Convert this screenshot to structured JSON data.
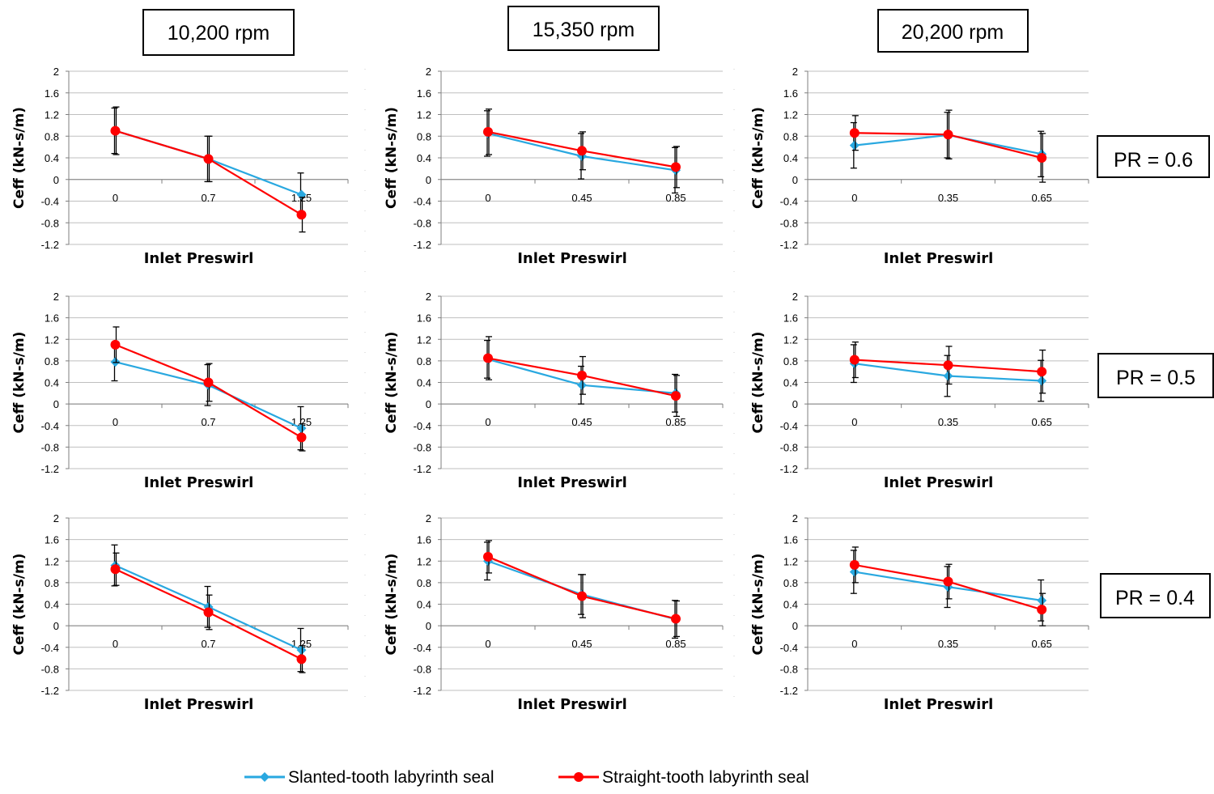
{
  "speed_labels": [
    "10,200 rpm",
    "15,350 rpm",
    "20,200 rpm"
  ],
  "pr_labels": [
    "PR = 0.6",
    "PR = 0.5",
    "PR = 0.4"
  ],
  "legend": {
    "items": [
      {
        "label": "Slanted-tooth labyrinth seal",
        "color": "#29a8e0",
        "marker": "diamond"
      },
      {
        "label": "Straight-tooth labyrinth seal",
        "color": "#ff0000",
        "marker": "circle"
      }
    ]
  },
  "chart_data": [
    {
      "type": "line",
      "row": 0,
      "col": 0,
      "xlabel": "Inlet Preswirl",
      "ylabel": "Ceff (kN-s/m)",
      "ylim": [
        -1.2,
        2
      ],
      "yticks": [
        "2",
        "1.6",
        "1.2",
        "0.8",
        "0.4",
        "0",
        "-0.4",
        "-0.8",
        "-1.2"
      ],
      "categories": [
        "0",
        "0.7",
        "1.25"
      ],
      "series": [
        {
          "name": "Slanted-tooth labyrinth seal",
          "values": [
            0.9,
            0.38,
            -0.28
          ],
          "err": [
            0.42,
            0.42,
            0.4
          ]
        },
        {
          "name": "Straight-tooth labyrinth seal",
          "values": [
            0.9,
            0.38,
            -0.65
          ],
          "err": [
            0.44,
            0.42,
            0.32
          ]
        }
      ]
    },
    {
      "type": "line",
      "row": 0,
      "col": 1,
      "xlabel": "Inlet Preswirl",
      "ylabel": "Ceff (kN-s/m)",
      "ylim": [
        -1.2,
        2
      ],
      "yticks": [
        "2",
        "1.6",
        "1.2",
        "0.8",
        "0.4",
        "0",
        "-0.4",
        "-0.8",
        "-1.2"
      ],
      "categories": [
        "0",
        "0.45",
        "0.85"
      ],
      "series": [
        {
          "name": "Slanted-tooth labyrinth seal",
          "values": [
            0.85,
            0.43,
            0.17
          ],
          "err": [
            0.42,
            0.42,
            0.42
          ]
        },
        {
          "name": "Straight-tooth labyrinth seal",
          "values": [
            0.88,
            0.53,
            0.23
          ],
          "err": [
            0.42,
            0.35,
            0.38
          ]
        }
      ]
    },
    {
      "type": "line",
      "row": 0,
      "col": 2,
      "xlabel": "Inlet Preswirl",
      "ylabel": "Ceff (kN-s/m)",
      "ylim": [
        -1.2,
        2
      ],
      "yticks": [
        "2",
        "1.6",
        "1.2",
        "0.8",
        "0.4",
        "0",
        "-0.4",
        "-0.8",
        "-1.2"
      ],
      "categories": [
        "0",
        "0.35",
        "0.65"
      ],
      "series": [
        {
          "name": "Slanted-tooth labyrinth seal",
          "values": [
            0.63,
            0.82,
            0.47
          ],
          "err": [
            0.42,
            0.42,
            0.42
          ]
        },
        {
          "name": "Straight-tooth labyrinth seal",
          "values": [
            0.86,
            0.83,
            0.4
          ],
          "err": [
            0.32,
            0.45,
            0.45
          ]
        }
      ]
    },
    {
      "type": "line",
      "row": 1,
      "col": 0,
      "xlabel": "Inlet Preswirl",
      "ylabel": "Ceff (kN-s/m)",
      "ylim": [
        -1.2,
        2
      ],
      "yticks": [
        "2",
        "1.6",
        "1.2",
        "0.8",
        "0.4",
        "0",
        "-0.4",
        "-0.8",
        "-1.2"
      ],
      "categories": [
        "0",
        "0.7",
        "1.25"
      ],
      "series": [
        {
          "name": "Slanted-tooth labyrinth seal",
          "values": [
            0.78,
            0.35,
            -0.45
          ],
          "err": [
            0.35,
            0.38,
            0.4
          ]
        },
        {
          "name": "Straight-tooth labyrinth seal",
          "values": [
            1.1,
            0.4,
            -0.62
          ],
          "err": [
            0.33,
            0.35,
            0.25
          ]
        }
      ]
    },
    {
      "type": "line",
      "row": 1,
      "col": 1,
      "xlabel": "Inlet Preswirl",
      "ylabel": "Ceff (kN-s/m)",
      "ylim": [
        -1.2,
        2
      ],
      "yticks": [
        "2",
        "1.6",
        "1.2",
        "0.8",
        "0.4",
        "0",
        "-0.4",
        "-0.8",
        "-1.2"
      ],
      "categories": [
        "0",
        "0.45",
        "0.85"
      ],
      "series": [
        {
          "name": "Slanted-tooth labyrinth seal",
          "values": [
            0.83,
            0.35,
            0.2
          ],
          "err": [
            0.35,
            0.35,
            0.35
          ]
        },
        {
          "name": "Straight-tooth labyrinth seal",
          "values": [
            0.85,
            0.53,
            0.15
          ],
          "err": [
            0.4,
            0.35,
            0.38
          ]
        }
      ]
    },
    {
      "type": "line",
      "row": 1,
      "col": 2,
      "xlabel": "Inlet Preswirl",
      "ylabel": "Ceff (kN-s/m)",
      "ylim": [
        -1.2,
        2
      ],
      "yticks": [
        "2",
        "1.6",
        "1.2",
        "0.8",
        "0.4",
        "0",
        "-0.4",
        "-0.8",
        "-1.2"
      ],
      "categories": [
        "0",
        "0.35",
        "0.65"
      ],
      "series": [
        {
          "name": "Slanted-tooth labyrinth seal",
          "values": [
            0.75,
            0.52,
            0.43
          ],
          "err": [
            0.35,
            0.38,
            0.38
          ]
        },
        {
          "name": "Straight-tooth labyrinth seal",
          "values": [
            0.82,
            0.72,
            0.6
          ],
          "err": [
            0.33,
            0.35,
            0.4
          ]
        }
      ]
    },
    {
      "type": "line",
      "row": 2,
      "col": 0,
      "xlabel": "Inlet Preswirl",
      "ylabel": "Ceff (kN-s/m)",
      "ylim": [
        -1.2,
        2
      ],
      "yticks": [
        "2",
        "1.6",
        "1.2",
        "0.8",
        "0.4",
        "0",
        "-0.4",
        "-0.8",
        "-1.2"
      ],
      "categories": [
        "0",
        "0.7",
        "1.25"
      ],
      "series": [
        {
          "name": "Slanted-tooth labyrinth seal",
          "values": [
            1.12,
            0.35,
            -0.45
          ],
          "err": [
            0.38,
            0.38,
            0.4
          ]
        },
        {
          "name": "Straight-tooth labyrinth seal",
          "values": [
            1.05,
            0.25,
            -0.62
          ],
          "err": [
            0.3,
            0.32,
            0.25
          ]
        }
      ]
    },
    {
      "type": "line",
      "row": 2,
      "col": 1,
      "xlabel": "Inlet Preswirl",
      "ylabel": "Ceff (kN-s/m)",
      "ylim": [
        -1.2,
        2
      ],
      "yticks": [
        "2",
        "1.6",
        "1.2",
        "0.8",
        "0.4",
        "0",
        "-0.4",
        "-0.8",
        "-1.2"
      ],
      "categories": [
        "0",
        "0.45",
        "0.85"
      ],
      "series": [
        {
          "name": "Slanted-tooth labyrinth seal",
          "values": [
            1.2,
            0.58,
            0.12
          ],
          "err": [
            0.35,
            0.37,
            0.35
          ]
        },
        {
          "name": "Straight-tooth labyrinth seal",
          "values": [
            1.28,
            0.55,
            0.13
          ],
          "err": [
            0.3,
            0.4,
            0.33
          ]
        }
      ]
    },
    {
      "type": "line",
      "row": 2,
      "col": 2,
      "xlabel": "Inlet Preswirl",
      "ylabel": "Ceff (kN-s/m)",
      "ylim": [
        -1.2,
        2
      ],
      "yticks": [
        "2",
        "1.6",
        "1.2",
        "0.8",
        "0.4",
        "0",
        "-0.4",
        "-0.8",
        "-1.2"
      ],
      "categories": [
        "0",
        "0.35",
        "0.65"
      ],
      "series": [
        {
          "name": "Slanted-tooth labyrinth seal",
          "values": [
            1.0,
            0.72,
            0.47
          ],
          "err": [
            0.4,
            0.38,
            0.38
          ]
        },
        {
          "name": "Straight-tooth labyrinth seal",
          "values": [
            1.13,
            0.82,
            0.3
          ],
          "err": [
            0.33,
            0.32,
            0.3
          ]
        }
      ]
    }
  ]
}
